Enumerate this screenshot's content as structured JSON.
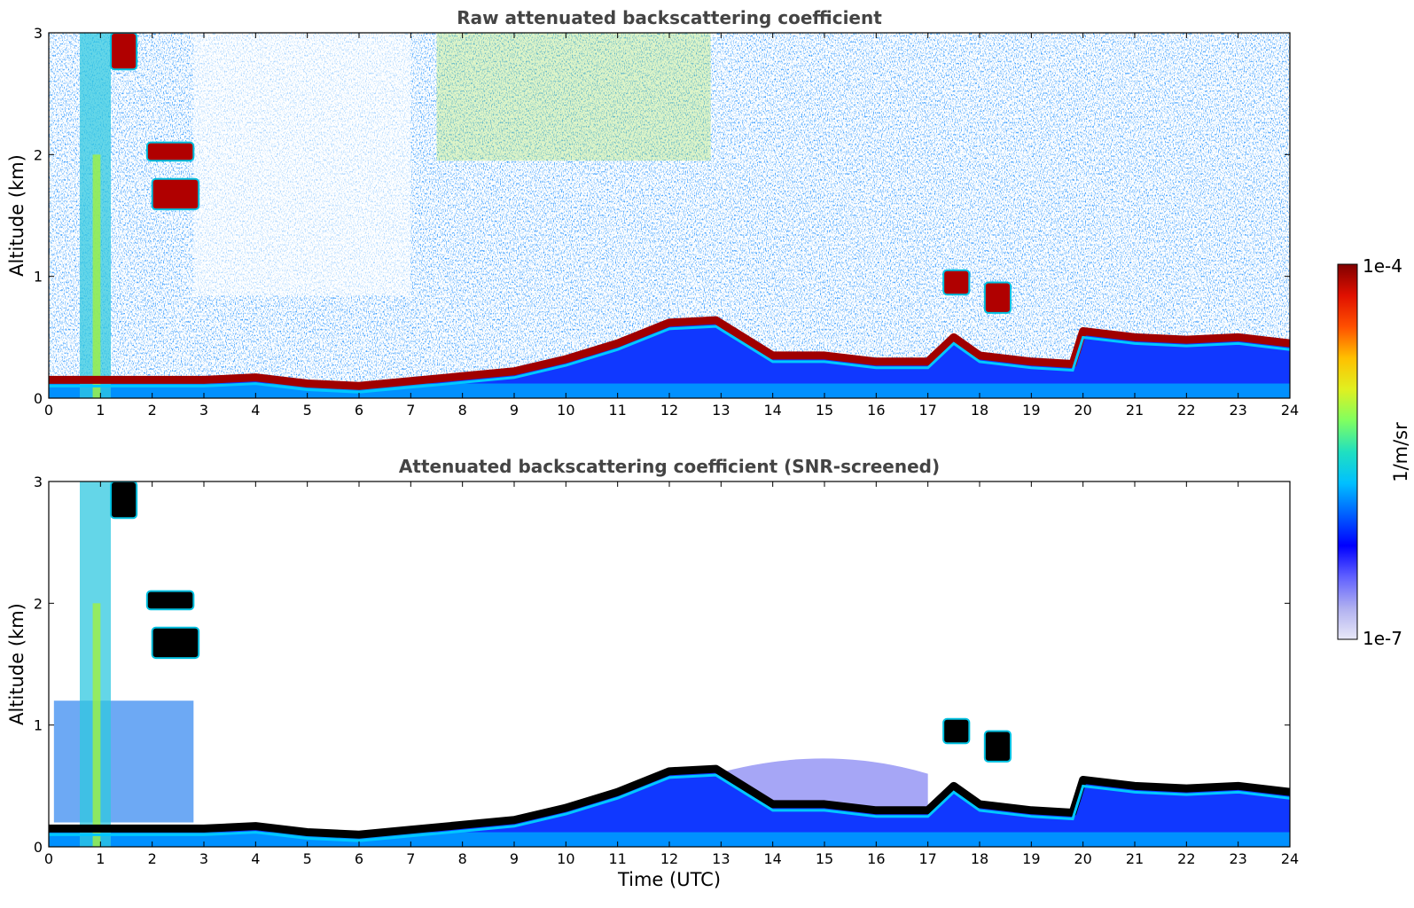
{
  "chart_data": [
    {
      "type": "heatmap",
      "title": "Raw attenuated backscattering coefficient",
      "xlabel": "",
      "ylabel": "Altitude (km)",
      "xlim": [
        0,
        24
      ],
      "ylim": [
        0,
        3
      ],
      "xticks": [
        "0",
        "1",
        "2",
        "3",
        "4",
        "5",
        "6",
        "7",
        "8",
        "9",
        "10",
        "11",
        "12",
        "13",
        "14",
        "15",
        "16",
        "17",
        "18",
        "19",
        "20",
        "21",
        "22",
        "23",
        "24"
      ],
      "yticks": [
        "0",
        "1",
        "2",
        "3"
      ],
      "boundary_layer_top_km": {
        "time_h": [
          0,
          1,
          2,
          3,
          4,
          5,
          6,
          7,
          8,
          9,
          10,
          11,
          12,
          12.9,
          14,
          15,
          16,
          17,
          17.5,
          18,
          19,
          19.8,
          20,
          21,
          22,
          23,
          24
        ],
        "altitude_km": [
          0.15,
          0.15,
          0.15,
          0.15,
          0.17,
          0.12,
          0.1,
          0.14,
          0.18,
          0.22,
          0.32,
          0.45,
          0.62,
          0.64,
          0.35,
          0.35,
          0.3,
          0.3,
          0.5,
          0.35,
          0.3,
          0.28,
          0.55,
          0.5,
          0.48,
          0.5,
          0.45
        ]
      },
      "cloud_layers": [
        {
          "time_h": [
            1.2,
            1.7
          ],
          "altitude_km": [
            2.7,
            3.0
          ]
        },
        {
          "time_h": [
            1.9,
            2.8
          ],
          "altitude_km": [
            1.95,
            2.1
          ]
        },
        {
          "time_h": [
            2.0,
            2.9
          ],
          "altitude_km": [
            1.55,
            1.8
          ]
        },
        {
          "time_h": [
            17.3,
            17.8
          ],
          "altitude_km": [
            0.85,
            1.05
          ]
        },
        {
          "time_h": [
            18.1,
            18.6
          ],
          "altitude_km": [
            0.7,
            0.95
          ]
        }
      ],
      "noise": "high"
    },
    {
      "type": "heatmap",
      "title": "Attenuated backscattering coefficient (SNR-screened)",
      "xlabel": "Time (UTC)",
      "ylabel": "Altitude (km)",
      "xlim": [
        0,
        24
      ],
      "ylim": [
        0,
        3
      ],
      "xticks": [
        "0",
        "1",
        "2",
        "3",
        "4",
        "5",
        "6",
        "7",
        "8",
        "9",
        "10",
        "11",
        "12",
        "13",
        "14",
        "15",
        "16",
        "17",
        "18",
        "19",
        "20",
        "21",
        "22",
        "23",
        "24"
      ],
      "yticks": [
        "0",
        "1",
        "2",
        "3"
      ],
      "boundary_layer_top_km": {
        "time_h": [
          0,
          1,
          2,
          3,
          4,
          5,
          6,
          7,
          8,
          9,
          10,
          11,
          12,
          12.9,
          14,
          15,
          16,
          17,
          17.5,
          18,
          19,
          19.8,
          20,
          21,
          22,
          23,
          24
        ],
        "altitude_km": [
          0.15,
          0.15,
          0.15,
          0.15,
          0.17,
          0.12,
          0.1,
          0.14,
          0.18,
          0.22,
          0.32,
          0.45,
          0.62,
          0.64,
          0.35,
          0.35,
          0.3,
          0.3,
          0.5,
          0.35,
          0.3,
          0.28,
          0.55,
          0.5,
          0.48,
          0.5,
          0.45
        ]
      },
      "cloud_layers": [
        {
          "time_h": [
            1.2,
            1.7
          ],
          "altitude_km": [
            2.7,
            3.0
          ]
        },
        {
          "time_h": [
            1.9,
            2.8
          ],
          "altitude_km": [
            1.95,
            2.1
          ]
        },
        {
          "time_h": [
            2.0,
            2.9
          ],
          "altitude_km": [
            1.55,
            1.8
          ]
        },
        {
          "time_h": [
            17.3,
            17.8
          ],
          "altitude_km": [
            0.85,
            1.05
          ]
        },
        {
          "time_h": [
            18.1,
            18.6
          ],
          "altitude_km": [
            0.7,
            0.95
          ]
        }
      ],
      "noise": "screened"
    }
  ],
  "colorbar": {
    "label": "1/m/sr",
    "max_label": "1e-4",
    "min_label": "1e-7",
    "colors": [
      "#e8e8f8",
      "#b0b0f0",
      "#6060ff",
      "#0000ff",
      "#0060ff",
      "#00c0ff",
      "#20e0c0",
      "#80ff60",
      "#e0f020",
      "#ffc000",
      "#ff5000",
      "#e01000",
      "#800000"
    ]
  }
}
